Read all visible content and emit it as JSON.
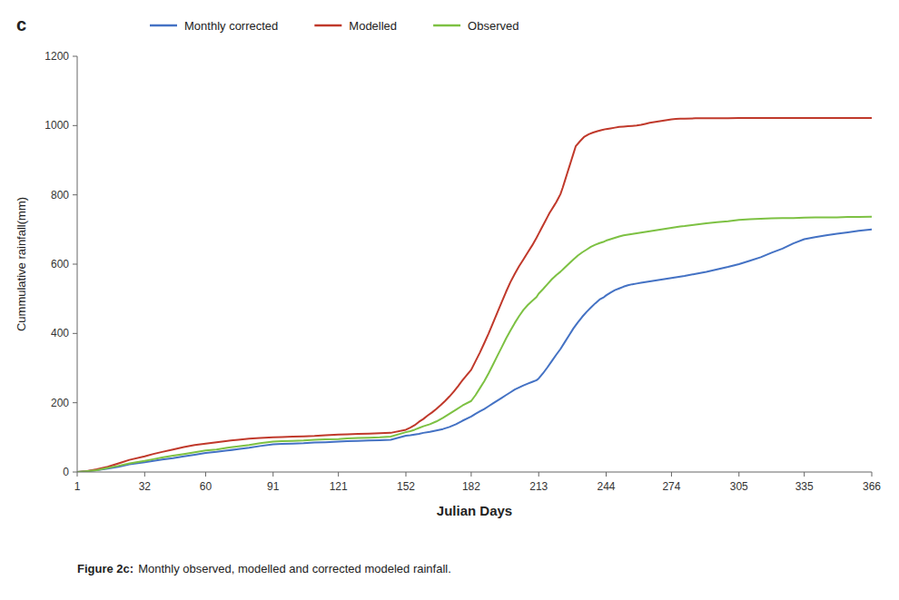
{
  "chart_data": {
    "type": "line",
    "title": "c",
    "x_label": "Julian Days",
    "y_label": "Cummulative rainfall(mm)",
    "caption": [
      "Figure 2c:",
      "Monthly observed, modelled and corrected modeled rainfall."
    ],
    "xlim": [
      1,
      366
    ],
    "ylim": [
      0,
      1200
    ],
    "xticks": [
      1,
      32,
      60,
      91,
      121,
      152,
      182,
      213,
      244,
      274,
      305,
      335,
      366
    ],
    "yticks": [
      0,
      200,
      400,
      600,
      800,
      1000,
      1200
    ],
    "grid": false,
    "legend": "top",
    "series": [
      {
        "name": "Monthly corrected",
        "color": "#4472C4",
        "x": [
          1,
          5,
          10,
          15,
          20,
          25,
          32,
          36,
          40,
          45,
          50,
          55,
          60,
          65,
          70,
          75,
          80,
          85,
          91,
          95,
          100,
          105,
          110,
          115,
          121,
          125,
          130,
          135,
          140,
          145,
          152,
          154,
          156,
          158,
          160,
          163,
          166,
          169,
          172,
          175,
          178,
          182,
          184,
          186,
          188,
          190,
          192,
          194,
          196,
          198,
          200,
          202,
          204,
          206,
          208,
          210,
          212,
          213,
          215,
          217,
          219,
          221,
          223,
          225,
          227,
          229,
          231,
          233,
          235,
          237,
          239,
          241,
          243,
          244,
          246,
          248,
          250,
          252,
          254,
          256,
          258,
          260,
          262,
          264,
          266,
          268,
          270,
          272,
          274,
          276,
          278,
          280,
          285,
          290,
          295,
          300,
          305,
          310,
          315,
          320,
          325,
          330,
          335,
          340,
          345,
          350,
          355,
          360,
          366
        ],
        "values": [
          0,
          2,
          5,
          10,
          15,
          22,
          28,
          32,
          36,
          40,
          45,
          50,
          55,
          58,
          62,
          66,
          70,
          75,
          80,
          81,
          82,
          83,
          85,
          86,
          88,
          89,
          90,
          91,
          92,
          93,
          105,
          106,
          108,
          110,
          113,
          116,
          120,
          124,
          130,
          138,
          148,
          160,
          168,
          175,
          182,
          190,
          198,
          206,
          214,
          222,
          230,
          238,
          244,
          250,
          255,
          260,
          265,
          270,
          285,
          302,
          320,
          338,
          355,
          375,
          395,
          415,
          432,
          448,
          462,
          475,
          487,
          498,
          505,
          510,
          518,
          525,
          530,
          535,
          539,
          542,
          544,
          546,
          548,
          550,
          552,
          554,
          556,
          558,
          560,
          562,
          564,
          566,
          572,
          578,
          585,
          592,
          600,
          610,
          620,
          633,
          645,
          660,
          672,
          678,
          683,
          688,
          692,
          696,
          700
        ]
      },
      {
        "name": "Modelled",
        "color": "#C0392B",
        "x": [
          1,
          5,
          10,
          15,
          20,
          25,
          32,
          36,
          40,
          45,
          50,
          55,
          60,
          65,
          70,
          75,
          80,
          85,
          91,
          95,
          100,
          105,
          110,
          115,
          121,
          125,
          130,
          135,
          140,
          145,
          152,
          154,
          156,
          158,
          160,
          162,
          164,
          166,
          168,
          170,
          172,
          174,
          176,
          178,
          180,
          182,
          184,
          186,
          188,
          190,
          192,
          194,
          196,
          198,
          200,
          202,
          204,
          206,
          208,
          210,
          211,
          212,
          213,
          214,
          215,
          216,
          217,
          218,
          219,
          220,
          221,
          222,
          223,
          224,
          225,
          226,
          227,
          228,
          229,
          230,
          232,
          234,
          236,
          238,
          240,
          242,
          244,
          246,
          248,
          250,
          252,
          254,
          256,
          258,
          260,
          262,
          264,
          266,
          268,
          270,
          272,
          274,
          276,
          278,
          280,
          285,
          290,
          295,
          300,
          305,
          310,
          315,
          320,
          325,
          330,
          335,
          340,
          345,
          350,
          355,
          360,
          366
        ],
        "values": [
          0,
          2,
          8,
          15,
          25,
          35,
          45,
          52,
          58,
          65,
          72,
          78,
          82,
          86,
          90,
          93,
          96,
          98,
          100,
          101,
          102,
          103,
          104,
          106,
          108,
          109,
          110,
          111,
          112,
          113,
          122,
          128,
          135,
          145,
          153,
          163,
          172,
          182,
          193,
          205,
          218,
          232,
          248,
          265,
          280,
          295,
          320,
          345,
          372,
          400,
          430,
          460,
          490,
          520,
          548,
          572,
          594,
          614,
          634,
          654,
          665,
          676,
          688,
          700,
          712,
          724,
          736,
          748,
          758,
          768,
          778,
          790,
          802,
          820,
          840,
          860,
          880,
          900,
          920,
          940,
          955,
          968,
          975,
          980,
          984,
          987,
          990,
          992,
          994,
          996,
          997,
          998,
          999,
          1000,
          1002,
          1005,
          1008,
          1010,
          1012,
          1014,
          1016,
          1018,
          1019,
          1020,
          1020,
          1021,
          1021,
          1021,
          1021,
          1022,
          1022,
          1022,
          1022,
          1022,
          1022,
          1022,
          1022,
          1022,
          1022,
          1022,
          1022,
          1022
        ]
      },
      {
        "name": "Observed",
        "color": "#7DC143",
        "x": [
          1,
          5,
          10,
          15,
          20,
          25,
          32,
          36,
          40,
          45,
          50,
          55,
          60,
          65,
          70,
          75,
          80,
          85,
          91,
          95,
          100,
          105,
          110,
          115,
          121,
          125,
          130,
          135,
          140,
          145,
          152,
          154,
          156,
          158,
          160,
          163,
          166,
          169,
          172,
          175,
          178,
          182,
          184,
          186,
          188,
          190,
          192,
          194,
          196,
          198,
          200,
          202,
          204,
          206,
          208,
          210,
          212,
          213,
          215,
          217,
          219,
          221,
          223,
          225,
          227,
          229,
          231,
          233,
          235,
          237,
          239,
          241,
          243,
          244,
          246,
          248,
          250,
          252,
          254,
          256,
          258,
          260,
          262,
          264,
          266,
          268,
          270,
          272,
          274,
          276,
          278,
          280,
          285,
          290,
          295,
          300,
          305,
          310,
          315,
          320,
          325,
          330,
          335,
          340,
          345,
          350,
          355,
          360,
          366
        ],
        "values": [
          0,
          2,
          5,
          12,
          18,
          25,
          32,
          37,
          42,
          47,
          52,
          57,
          62,
          65,
          70,
          74,
          78,
          83,
          88,
          89,
          90,
          91,
          93,
          94,
          95,
          97,
          98,
          99,
          100,
          102,
          115,
          118,
          122,
          127,
          132,
          138,
          146,
          156,
          168,
          180,
          192,
          205,
          222,
          242,
          262,
          285,
          310,
          335,
          360,
          385,
          408,
          430,
          450,
          468,
          482,
          494,
          505,
          515,
          528,
          542,
          556,
          568,
          578,
          590,
          602,
          614,
          625,
          634,
          642,
          650,
          656,
          661,
          665,
          668,
          672,
          676,
          680,
          683,
          685,
          687,
          689,
          691,
          693,
          695,
          697,
          699,
          701,
          703,
          705,
          707,
          709,
          710,
          714,
          718,
          721,
          724,
          728,
          730,
          731,
          732,
          733,
          733,
          734,
          735,
          735,
          735,
          736,
          736,
          737
        ]
      }
    ]
  }
}
